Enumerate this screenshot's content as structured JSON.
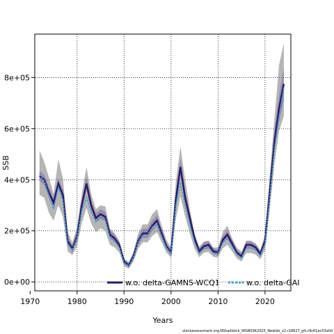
{
  "chart_data": {
    "type": "line",
    "xlabel": "Years",
    "ylabel": "SSB",
    "xlim": [
      1971,
      2025.5
    ],
    "ylim": [
      -35000,
      970000
    ],
    "xticks": [
      1970,
      1980,
      1990,
      2000,
      2010,
      2020
    ],
    "yticks": [
      0,
      200000,
      400000,
      600000,
      800000
    ],
    "ytick_labels": [
      "0e+00",
      "2e+05",
      "4e+05",
      "6e+05",
      "8e+05"
    ],
    "grid": true,
    "grid_style": "dotted",
    "legend_position": "bottom",
    "x": [
      1972,
      1973,
      1974,
      1975,
      1976,
      1977,
      1978,
      1979,
      1980,
      1981,
      1982,
      1983,
      1984,
      1985,
      1986,
      1987,
      1988,
      1989,
      1990,
      1991,
      1992,
      1993,
      1994,
      1995,
      1996,
      1997,
      1998,
      1999,
      2000,
      2001,
      2002,
      2003,
      2004,
      2005,
      2006,
      2007,
      2008,
      2009,
      2010,
      2011,
      2012,
      2013,
      2014,
      2015,
      2016,
      2017,
      2018,
      2019,
      2020,
      2021,
      2022,
      2023,
      2024
    ],
    "series": [
      {
        "name": "w.o. delta-GAMNS-WCQ1",
        "color": "#2b1a63",
        "values": [
          415000,
          400000,
          350000,
          310000,
          385000,
          340000,
          160000,
          130000,
          180000,
          300000,
          385000,
          300000,
          250000,
          265000,
          255000,
          185000,
          170000,
          145000,
          80000,
          65000,
          100000,
          160000,
          190000,
          190000,
          220000,
          240000,
          190000,
          140000,
          115000,
          320000,
          450000,
          330000,
          250000,
          170000,
          120000,
          140000,
          145000,
          120000,
          115000,
          165000,
          185000,
          150000,
          115000,
          100000,
          145000,
          145000,
          135000,
          110000,
          160000,
          350000,
          550000,
          680000,
          775000
        ],
        "lower": [
          395000,
          380000,
          330000,
          290000,
          365000,
          320000,
          145000,
          117000,
          162000,
          280000,
          360000,
          280000,
          232000,
          246000,
          236000,
          170000,
          155000,
          132000,
          70000,
          56000,
          88000,
          145000,
          172000,
          172000,
          200000,
          218000,
          172000,
          127000,
          104000,
          295000,
          420000,
          305000,
          230000,
          155000,
          108000,
          126000,
          130000,
          108000,
          104000,
          150000,
          168000,
          136000,
          104000,
          90000,
          132000,
          132000,
          122000,
          99000,
          145000,
          320000,
          510000,
          630000,
          710000
        ],
        "upper": [
          435000,
          420000,
          370000,
          330000,
          405000,
          360000,
          175000,
          143000,
          198000,
          320000,
          410000,
          320000,
          268000,
          284000,
          274000,
          200000,
          185000,
          158000,
          90000,
          74000,
          112000,
          175000,
          208000,
          208000,
          240000,
          262000,
          208000,
          153000,
          126000,
          345000,
          480000,
          355000,
          270000,
          185000,
          132000,
          154000,
          160000,
          132000,
          126000,
          180000,
          202000,
          164000,
          126000,
          110000,
          158000,
          158000,
          148000,
          121000,
          175000,
          380000,
          590000,
          730000,
          840000
        ]
      },
      {
        "name": "w.o. delta-GAI",
        "color": "#3a9fd6",
        "values": [
          420000,
          395000,
          340000,
          285000,
          370000,
          320000,
          150000,
          125000,
          175000,
          280000,
          330000,
          275000,
          235000,
          255000,
          245000,
          175000,
          160000,
          135000,
          75000,
          62000,
          97000,
          155000,
          185000,
          185000,
          215000,
          230000,
          180000,
          135000,
          112000,
          300000,
          390000,
          300000,
          225000,
          155000,
          112000,
          132000,
          135000,
          113000,
          112000,
          155000,
          170000,
          140000,
          108000,
          95000,
          132000,
          132000,
          125000,
          103000,
          150000,
          330000,
          520000,
          650000,
          760000
        ],
        "lower": [
          340000,
          330000,
          270000,
          240000,
          300000,
          255000,
          120000,
          105000,
          140000,
          230000,
          290000,
          230000,
          195000,
          210000,
          200000,
          145000,
          135000,
          115000,
          62000,
          52000,
          80000,
          130000,
          155000,
          155000,
          180000,
          195000,
          155000,
          115000,
          95000,
          245000,
          335000,
          255000,
          190000,
          130000,
          96000,
          115000,
          117000,
          98000,
          96000,
          132000,
          145000,
          120000,
          92000,
          80000,
          113000,
          113000,
          107000,
          88000,
          125000,
          280000,
          460000,
          590000,
          650000
        ],
        "upper": [
          515000,
          470000,
          410000,
          345000,
          480000,
          405000,
          195000,
          155000,
          215000,
          345000,
          450000,
          345000,
          285000,
          300000,
          295000,
          210000,
          190000,
          160000,
          92000,
          78000,
          118000,
          190000,
          225000,
          225000,
          265000,
          285000,
          220000,
          165000,
          135000,
          390000,
          530000,
          400000,
          285000,
          190000,
          138000,
          158000,
          162000,
          135000,
          135000,
          195000,
          220000,
          170000,
          135000,
          118000,
          162000,
          162000,
          150000,
          125000,
          185000,
          415000,
          640000,
          850000,
          935000
        ]
      }
    ]
  },
  "footer": "stockassessment.org,NShaddock_WGNSSK2025_Newlds_v2,r18627_git:c9c61ac53a0d"
}
